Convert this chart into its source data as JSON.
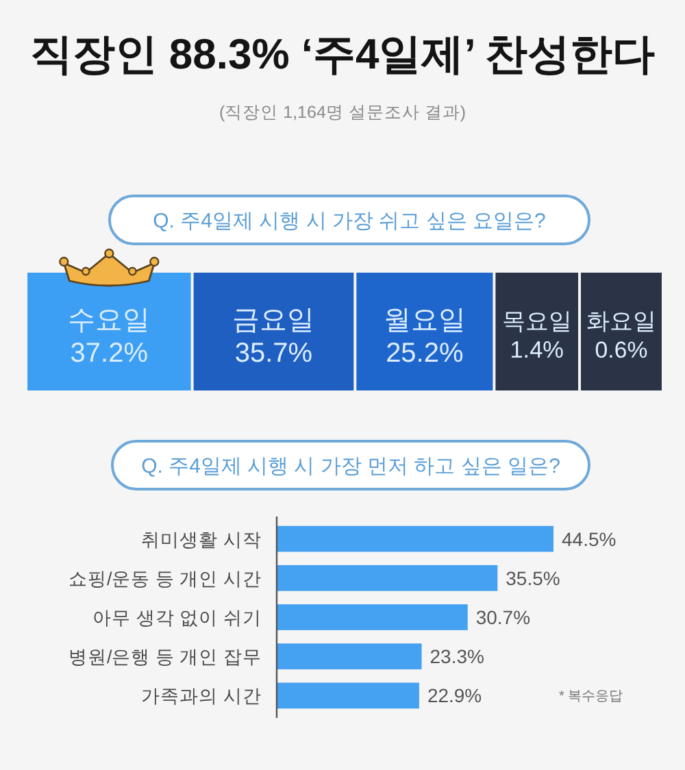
{
  "chart_data": [
    {
      "type": "other",
      "title": "직장인 88.3% ‘주4일제’ 찬성한다",
      "subtitle": "(직장인 1,164명 설문조사 결과)",
      "annotations": [
        "Q. 주4일제 시행 시 가장 쉬고 싶은 요일은?"
      ],
      "categories": [
        "수요일",
        "금요일",
        "월요일",
        "목요일",
        "화요일"
      ],
      "values": [
        37.2,
        35.7,
        25.2,
        1.4,
        0.6
      ],
      "value_labels": [
        "37.2%",
        "35.7%",
        "25.2%",
        "1.4%",
        "0.6%"
      ],
      "colors": [
        "#3d9ff3",
        "#1f5fc2",
        "#1f66cc",
        "#2b3346",
        "#2b3346"
      ]
    },
    {
      "type": "bar",
      "orientation": "horizontal",
      "title": "Q. 주4일제 시행 시 가장 먼저 하고 싶은 일은?",
      "annotations": [
        "* 복수응답"
      ],
      "categories": [
        "취미생활 시작",
        "쇼핑/운동 등 개인 시간",
        "아무 생각 없이 쉬기",
        "병원/은행 등 개인 잡무",
        "가족과의 시간"
      ],
      "values": [
        44.5,
        35.5,
        30.7,
        23.3,
        22.9
      ],
      "value_labels": [
        "44.5%",
        "35.5%",
        "30.7%",
        "23.3%",
        "22.9%"
      ],
      "color": "#45a1f1",
      "tick_labels": "y"
    }
  ]
}
